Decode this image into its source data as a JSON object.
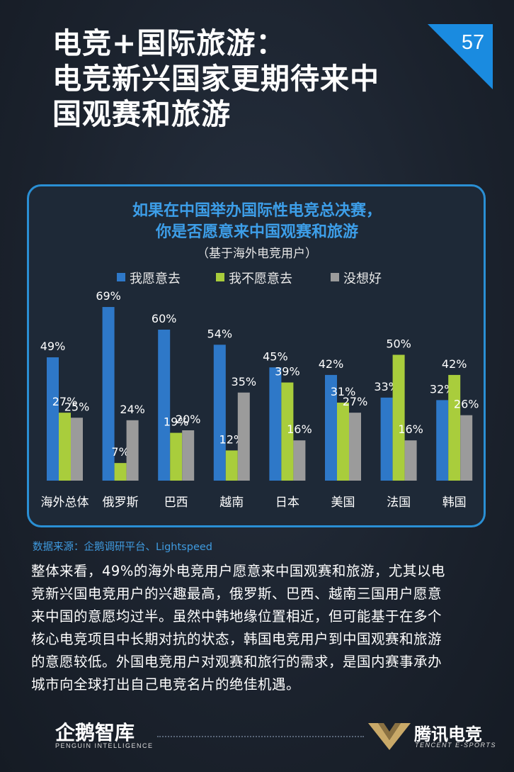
{
  "header": {
    "title_lines": [
      "电竞+国际旅游：",
      "电竞新兴国家更期待来中",
      "国观赛和旅游"
    ],
    "page_number": "57",
    "accent_color": "#1a8be0"
  },
  "chart_data": {
    "type": "bar",
    "title_lines": [
      "如果在中国举办国际性电竞总决赛，",
      "你是否愿意来中国观赛和旅游"
    ],
    "subtitle": "（基于海外电竞用户）",
    "categories": [
      "海外总体",
      "俄罗斯",
      "巴西",
      "越南",
      "日本",
      "美国",
      "法国",
      "韩国"
    ],
    "series": [
      {
        "name": "我愿意去",
        "color": "#2e78c8",
        "values": [
          49,
          69,
          60,
          54,
          45,
          42,
          33,
          32
        ]
      },
      {
        "name": "我不愿意去",
        "color": "#a9cd3c",
        "values": [
          27,
          7,
          19,
          12,
          39,
          31,
          50,
          42
        ]
      },
      {
        "name": "没想好",
        "color": "#9b9b9b",
        "values": [
          25,
          24,
          20,
          35,
          16,
          27,
          16,
          26
        ]
      }
    ],
    "value_suffix": "%",
    "ylim": [
      0,
      75
    ],
    "legend_position": "top",
    "grid": false
  },
  "source_text": "数据来源：企鹅调研平台、Lightspeed",
  "body_lines": [
    "整体来看，49%的海外电竞用户愿意来中国观赛和旅游，尤其以电",
    "竞新兴国电竞用户的兴趣最高，俄罗斯、巴西、越南三国用户愿意",
    "来中国的意愿均过半。虽然中韩地缘位置相近，但可能基于在多个",
    "核心电竞项目中长期对抗的状态，韩国电竞用户到中国观赛和旅游",
    "的意愿较低。外国电竞用户对观赛和旅行的需求，是国内赛事承办",
    "城市向全球打出自己电竞名片的绝佳机遇。"
  ],
  "footer": {
    "left_logo": "企鹅智库",
    "left_logo_sub": "PENGUIN INTELLIGENCE",
    "right_logo": "腾讯电竞",
    "right_logo_sub": "TENCENT E-SPORTS"
  }
}
